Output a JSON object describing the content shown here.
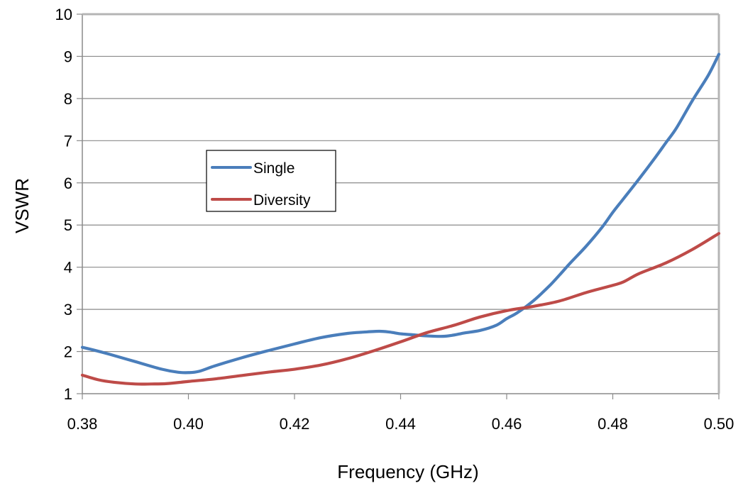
{
  "chart_data": {
    "type": "line",
    "title": "",
    "xlabel": "Frequency (GHz)",
    "ylabel": "VSWR",
    "xlim": [
      0.38,
      0.5
    ],
    "ylim": [
      1,
      10
    ],
    "xticks": [
      "0.38",
      "0.40",
      "0.42",
      "0.44",
      "0.46",
      "0.48",
      "0.50"
    ],
    "yticks": [
      "1",
      "2",
      "3",
      "4",
      "5",
      "6",
      "7",
      "8",
      "9",
      "10"
    ],
    "grid": "horizontal",
    "legend_position": "center-left",
    "series": [
      {
        "name": "Single",
        "color": "#4a7ebb",
        "x": [
          0.38,
          0.382,
          0.385,
          0.39,
          0.395,
          0.398,
          0.4,
          0.402,
          0.405,
          0.41,
          0.415,
          0.42,
          0.425,
          0.43,
          0.433,
          0.436,
          0.438,
          0.44,
          0.442,
          0.445,
          0.448,
          0.45,
          0.452,
          0.455,
          0.458,
          0.46,
          0.462,
          0.465,
          0.468,
          0.47,
          0.472,
          0.475,
          0.478,
          0.48,
          0.482,
          0.485,
          0.488,
          0.49,
          0.492,
          0.495,
          0.498,
          0.5
        ],
        "y": [
          2.1,
          2.04,
          1.94,
          1.76,
          1.58,
          1.51,
          1.5,
          1.53,
          1.66,
          1.85,
          2.02,
          2.18,
          2.33,
          2.43,
          2.46,
          2.48,
          2.46,
          2.42,
          2.4,
          2.37,
          2.36,
          2.39,
          2.44,
          2.5,
          2.62,
          2.78,
          2.92,
          3.2,
          3.55,
          3.82,
          4.1,
          4.5,
          4.95,
          5.3,
          5.62,
          6.1,
          6.6,
          6.95,
          7.3,
          7.95,
          8.55,
          9.05
        ]
      },
      {
        "name": "Diversity",
        "color": "#be4b48",
        "x": [
          0.38,
          0.383,
          0.386,
          0.39,
          0.393,
          0.396,
          0.4,
          0.405,
          0.41,
          0.415,
          0.42,
          0.425,
          0.43,
          0.435,
          0.44,
          0.445,
          0.45,
          0.455,
          0.46,
          0.465,
          0.47,
          0.475,
          0.48,
          0.482,
          0.485,
          0.49,
          0.495,
          0.5
        ],
        "y": [
          1.44,
          1.33,
          1.27,
          1.23,
          1.23,
          1.24,
          1.29,
          1.35,
          1.43,
          1.51,
          1.58,
          1.68,
          1.83,
          2.02,
          2.23,
          2.45,
          2.62,
          2.82,
          2.97,
          3.07,
          3.2,
          3.4,
          3.57,
          3.65,
          3.85,
          4.1,
          4.42,
          4.8
        ]
      }
    ]
  }
}
